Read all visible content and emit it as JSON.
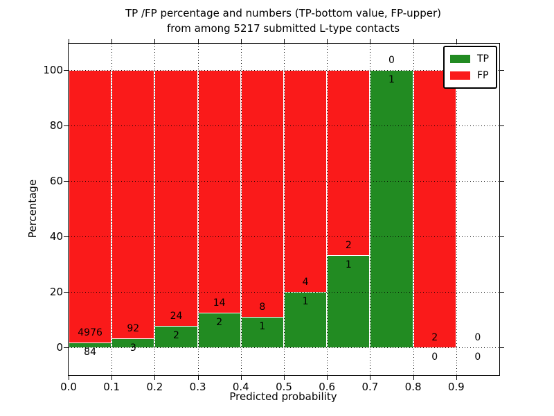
{
  "title": {
    "line1": "TP /FP percentage and numbers (TP-bottom value, FP-upper)",
    "line2": "from among 5217 submitted L-type contacts"
  },
  "chart_data": {
    "type": "bar",
    "variant": "stacked-percentage",
    "title": "TP /FP percentage and numbers (TP-bottom value, FP-upper) from among 5217 submitted L-type contacts",
    "xlabel": "Predicted probability",
    "ylabel": "Percentage",
    "total_submitted": 5217,
    "categories": [
      "0.0-0.1",
      "0.1-0.2",
      "0.2-0.3",
      "0.3-0.4",
      "0.4-0.5",
      "0.5-0.6",
      "0.6-0.7",
      "0.7-0.8",
      "0.8-0.9",
      "0.9-1.0"
    ],
    "bin_starts": [
      0.0,
      0.1,
      0.2,
      0.3,
      0.4,
      0.5,
      0.6,
      0.7,
      0.8,
      0.9
    ],
    "series": [
      {
        "name": "TP",
        "color": "#228b22",
        "counts": [
          84,
          3,
          2,
          2,
          1,
          1,
          1,
          1,
          0,
          0
        ]
      },
      {
        "name": "FP",
        "color": "#fa1a1a",
        "counts": [
          4976,
          92,
          24,
          14,
          8,
          4,
          2,
          0,
          2,
          0
        ]
      }
    ],
    "tp_percent_of_bin": [
      1.66,
      3.16,
      7.69,
      12.5,
      11.11,
      20.0,
      33.33,
      100.0,
      0.0,
      null
    ],
    "xticks": [
      "0.0",
      "0.1",
      "0.2",
      "0.3",
      "0.4",
      "0.5",
      "0.6",
      "0.7",
      "0.8",
      "0.9"
    ],
    "yticks": [
      "0",
      "20",
      "40",
      "60",
      "80",
      "100"
    ],
    "ytick_values": [
      0,
      20,
      40,
      60,
      80,
      100
    ],
    "ylim": [
      -10,
      109.5
    ],
    "xlim": [
      0.0,
      1.0
    ],
    "grid": "dotted",
    "bar_edge_color": "#ffffff",
    "legend_position": "upper right"
  },
  "legend": {
    "items": [
      {
        "label": "TP",
        "color": "#228b22"
      },
      {
        "label": "FP",
        "color": "#fa1a1a"
      }
    ]
  }
}
